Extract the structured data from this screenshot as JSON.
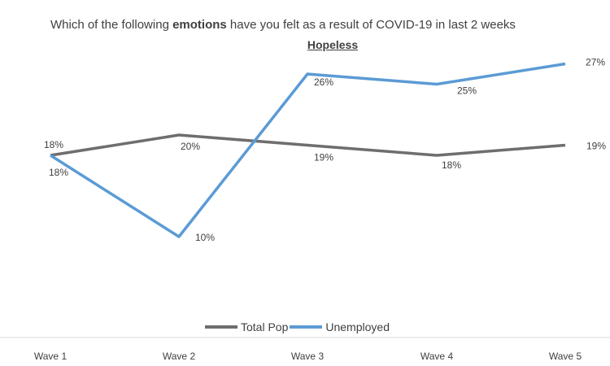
{
  "chart_data": {
    "type": "line",
    "title_prefix": "Which of the following ",
    "title_bold": "emotions",
    "title_suffix": " have you felt as a result of COVID-19 in last 2 weeks",
    "subtitle": "Hopeless",
    "categories": [
      "Wave 1",
      "Wave 2",
      "Wave 3",
      "Wave 4",
      "Wave 5"
    ],
    "series": [
      {
        "name": "Total Pop",
        "color": "#6e6e6e",
        "values": [
          18,
          20,
          19,
          18,
          19
        ],
        "labels": [
          "18%",
          "20%",
          "19%",
          "18%",
          "19%"
        ]
      },
      {
        "name": "Unemployed",
        "color": "#5b9bd5",
        "values": [
          18,
          10,
          26,
          25,
          27
        ],
        "labels": [
          "18%",
          "10%",
          "26%",
          "25%",
          "27%"
        ]
      }
    ],
    "ylim": [
      0,
      30
    ],
    "grid": false,
    "legend_position": "bottom"
  }
}
